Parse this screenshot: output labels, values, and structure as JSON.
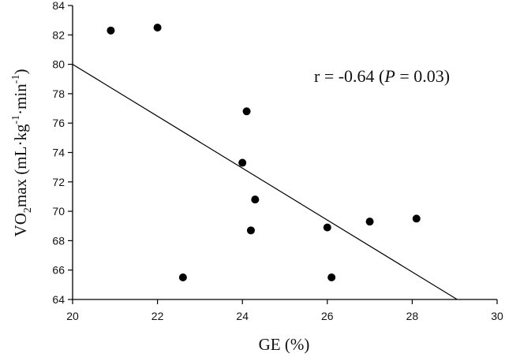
{
  "chart_data": {
    "type": "scatter",
    "title": "",
    "xlabel": "GE (%)",
    "ylabel": "VO2max (mL·kg-1·min-1)",
    "ylabel_parts": {
      "main": "VO",
      "sub": "2",
      "rest": "max (mL·kg",
      "sup1": "-1",
      "mid": "·min",
      "sup2": "-1",
      "close": ")"
    },
    "xlim": [
      20,
      30
    ],
    "ylim": [
      64,
      84
    ],
    "x_ticks": [
      20,
      22,
      24,
      26,
      28,
      30
    ],
    "y_ticks": [
      64,
      66,
      68,
      70,
      72,
      74,
      76,
      78,
      80,
      82,
      84
    ],
    "grid": false,
    "legend": null,
    "annotation": {
      "prefix": "r = -0.64 (",
      "italic": "P",
      "suffix": " = 0.03)"
    },
    "points": [
      {
        "x": 20.9,
        "y": 82.3
      },
      {
        "x": 22.0,
        "y": 82.5
      },
      {
        "x": 24.1,
        "y": 76.8
      },
      {
        "x": 24.0,
        "y": 73.3
      },
      {
        "x": 24.3,
        "y": 70.8
      },
      {
        "x": 24.2,
        "y": 68.7
      },
      {
        "x": 22.6,
        "y": 65.5
      },
      {
        "x": 26.0,
        "y": 68.9
      },
      {
        "x": 26.1,
        "y": 65.5
      },
      {
        "x": 27.0,
        "y": 69.3
      },
      {
        "x": 28.1,
        "y": 69.5
      }
    ],
    "regression_line": {
      "x0": 20,
      "y0": 80.0,
      "x1": 29.06,
      "y1": 64.0
    },
    "colors": {
      "points": "#000000",
      "line": "#000000",
      "axis": "#000000"
    }
  }
}
